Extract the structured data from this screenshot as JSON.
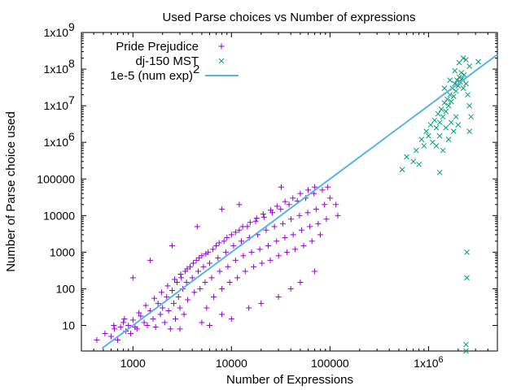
{
  "chart_data": {
    "type": "scatter",
    "title": "Used Parse choices vs Number of expressions",
    "xlabel": "Number of Expressions",
    "ylabel": "Number of Parse choice used",
    "x_scale": "log",
    "y_scale": "log",
    "xlim": [
      300,
      5000000
    ],
    "ylim": [
      2,
      1000000000
    ],
    "x_ticks": [
      {
        "value": 1000,
        "label": "1000"
      },
      {
        "value": 10000,
        "label": "10000"
      },
      {
        "value": 100000,
        "label": "100000"
      },
      {
        "value": 1000000,
        "label": "1x10",
        "sup": "6"
      }
    ],
    "y_ticks": [
      {
        "value": 10,
        "label": "10"
      },
      {
        "value": 100,
        "label": "100"
      },
      {
        "value": 1000,
        "label": "1000"
      },
      {
        "value": 10000,
        "label": "10000"
      },
      {
        "value": 100000,
        "label": "100000"
      },
      {
        "value": 1000000,
        "label": "1x10",
        "sup": "6"
      },
      {
        "value": 10000000,
        "label": "1x10",
        "sup": "7"
      },
      {
        "value": 100000000,
        "label": "1x10",
        "sup": "8"
      },
      {
        "value": 1000000000,
        "label": "1x10",
        "sup": "9"
      }
    ],
    "grid": false,
    "legend_position": "top-left",
    "series": [
      {
        "name": "Pride Prejudice",
        "marker": "plus",
        "color": "#9400d3",
        "points": [
          [
            430,
            4
          ],
          [
            520,
            6
          ],
          [
            600,
            5
          ],
          [
            650,
            8
          ],
          [
            700,
            4
          ],
          [
            750,
            9
          ],
          [
            800,
            12
          ],
          [
            850,
            7
          ],
          [
            900,
            10
          ],
          [
            950,
            6
          ],
          [
            1000,
            14
          ],
          [
            1050,
            9
          ],
          [
            1100,
            8
          ],
          [
            1200,
            18
          ],
          [
            1300,
            12
          ],
          [
            1400,
            10
          ],
          [
            1500,
            25
          ],
          [
            1600,
            15
          ],
          [
            1700,
            9
          ],
          [
            1800,
            40
          ],
          [
            1900,
            20
          ],
          [
            2000,
            30
          ],
          [
            2100,
            12
          ],
          [
            2200,
            60
          ],
          [
            2300,
            25
          ],
          [
            2400,
            8
          ],
          [
            2500,
            90
          ],
          [
            2600,
            40
          ],
          [
            2700,
            15
          ],
          [
            2800,
            150
          ],
          [
            2900,
            60
          ],
          [
            3000,
            30
          ],
          [
            3100,
            200
          ],
          [
            3200,
            100
          ],
          [
            3300,
            20
          ],
          [
            3400,
            300
          ],
          [
            3500,
            150
          ],
          [
            3600,
            50
          ],
          [
            3800,
            400
          ],
          [
            4000,
            200
          ],
          [
            4200,
            80
          ],
          [
            4400,
            600
          ],
          [
            4600,
            300
          ],
          [
            4800,
            100
          ],
          [
            5000,
            800
          ],
          [
            5200,
            400
          ],
          [
            5400,
            150
          ],
          [
            5600,
            30
          ],
          [
            5800,
            1000
          ],
          [
            6000,
            500
          ],
          [
            6300,
            200
          ],
          [
            6600,
            60
          ],
          [
            7000,
            1500
          ],
          [
            7300,
            700
          ],
          [
            7600,
            300
          ],
          [
            8000,
            100
          ],
          [
            8400,
            2000
          ],
          [
            8800,
            1000
          ],
          [
            9200,
            400
          ],
          [
            9600,
            150
          ],
          [
            10000,
            3000
          ],
          [
            10500,
            1500
          ],
          [
            11000,
            600
          ],
          [
            11500,
            200
          ],
          [
            12000,
            4000
          ],
          [
            12600,
            2000
          ],
          [
            13200,
            800
          ],
          [
            13800,
            300
          ],
          [
            14500,
            5000
          ],
          [
            15200,
            2500
          ],
          [
            16000,
            1000
          ],
          [
            16800,
            400
          ],
          [
            17600,
            7000
          ],
          [
            18500,
            3000
          ],
          [
            19400,
            1200
          ],
          [
            20400,
            500
          ],
          [
            21400,
            9000
          ],
          [
            22500,
            4000
          ],
          [
            23600,
            1500
          ],
          [
            24800,
            600
          ],
          [
            26000,
            12000
          ],
          [
            27300,
            5000
          ],
          [
            28700,
            2000
          ],
          [
            30100,
            800
          ],
          [
            31600,
            15000
          ],
          [
            33200,
            6000
          ],
          [
            34800,
            2500
          ],
          [
            36500,
            1000
          ],
          [
            38400,
            20000
          ],
          [
            40300,
            8000
          ],
          [
            42300,
            3000
          ],
          [
            44400,
            1200
          ],
          [
            46600,
            25000
          ],
          [
            49000,
            10000
          ],
          [
            51400,
            4000
          ],
          [
            54000,
            1500
          ],
          [
            56700,
            30000
          ],
          [
            59500,
            12000
          ],
          [
            62500,
            5000
          ],
          [
            65600,
            2000
          ],
          [
            68900,
            40000
          ],
          [
            72300,
            15000
          ],
          [
            75900,
            6000
          ],
          [
            79700,
            3000
          ],
          [
            83700,
            50000
          ],
          [
            88000,
            20000
          ],
          [
            92000,
            8000
          ],
          [
            95000,
            60000
          ],
          [
            100000,
            30000
          ],
          [
            115000,
            20000
          ],
          [
            120000,
            10000
          ],
          [
            640,
            10
          ],
          [
            820,
            15
          ],
          [
            1150,
            22
          ],
          [
            1350,
            35
          ],
          [
            1650,
            55
          ],
          [
            1950,
            80
          ],
          [
            2250,
            120
          ],
          [
            2650,
            180
          ],
          [
            3050,
            250
          ],
          [
            3550,
            350
          ],
          [
            4100,
            500
          ],
          [
            4700,
            700
          ],
          [
            5500,
            900
          ],
          [
            6500,
            1200
          ],
          [
            7500,
            1800
          ],
          [
            9000,
            2500
          ],
          [
            11000,
            3500
          ],
          [
            13000,
            5000
          ],
          [
            15500,
            6500
          ],
          [
            18000,
            8500
          ],
          [
            21000,
            11000
          ],
          [
            25000,
            14000
          ],
          [
            29000,
            18000
          ],
          [
            35000,
            24000
          ],
          [
            42000,
            30000
          ],
          [
            50000,
            40000
          ],
          [
            60000,
            50000
          ],
          [
            70000,
            60000
          ],
          [
            32000,
            60000
          ],
          [
            8000,
            15000
          ],
          [
            12000,
            20000
          ],
          [
            4500,
            5000
          ],
          [
            2500,
            1500
          ],
          [
            1500,
            600
          ],
          [
            1000,
            200
          ],
          [
            5000,
            12
          ],
          [
            8000,
            20
          ],
          [
            15000,
            30
          ],
          [
            30000,
            60
          ],
          [
            50000,
            150
          ],
          [
            70000,
            300
          ],
          [
            3000,
            8
          ],
          [
            6000,
            10
          ],
          [
            10000,
            15
          ],
          [
            20000,
            40
          ],
          [
            40000,
            100
          ]
        ]
      },
      {
        "name": "dj-150 MST",
        "marker": "cross",
        "color": "#009e73",
        "points": [
          [
            540000,
            180000
          ],
          [
            600000,
            400000
          ],
          [
            700000,
            300000
          ],
          [
            750000,
            600000
          ],
          [
            800000,
            250000
          ],
          [
            850000,
            1200000
          ],
          [
            900000,
            800000
          ],
          [
            950000,
            2000000
          ],
          [
            1000000,
            1500000
          ],
          [
            1050000,
            3000000
          ],
          [
            1100000,
            1000000
          ],
          [
            1150000,
            4000000
          ],
          [
            1200000,
            2500000
          ],
          [
            1250000,
            6000000
          ],
          [
            1300000,
            3500000
          ],
          [
            1350000,
            8000000
          ],
          [
            1400000,
            5000000
          ],
          [
            1450000,
            12000000
          ],
          [
            1500000,
            7000000
          ],
          [
            1550000,
            15000000
          ],
          [
            1600000,
            10000000
          ],
          [
            1650000,
            20000000
          ],
          [
            1700000,
            13000000
          ],
          [
            1750000,
            30000000
          ],
          [
            1800000,
            18000000
          ],
          [
            1850000,
            40000000
          ],
          [
            1900000,
            25000000
          ],
          [
            1950000,
            50000000
          ],
          [
            2000000,
            35000000
          ],
          [
            2050000,
            60000000
          ],
          [
            2100000,
            45000000
          ],
          [
            2150000,
            80000000
          ],
          [
            2200000,
            55000000
          ],
          [
            2250000,
            30000000
          ],
          [
            2300000,
            70000000
          ],
          [
            2400000,
            40000000
          ],
          [
            2500000,
            20000000
          ],
          [
            2600000,
            10000000
          ],
          [
            2700000,
            5000000
          ],
          [
            1200000,
            800000
          ],
          [
            1300000,
            1500000
          ],
          [
            1400000,
            600000
          ],
          [
            1500000,
            2500000
          ],
          [
            1600000,
            1200000
          ],
          [
            1700000,
            3500000
          ],
          [
            1800000,
            2000000
          ],
          [
            1900000,
            5000000
          ],
          [
            2000000,
            3000000
          ],
          [
            1450000,
            30000000
          ],
          [
            1650000,
            50000000
          ],
          [
            1850000,
            90000000
          ],
          [
            2050000,
            150000000
          ],
          [
            2250000,
            200000000
          ],
          [
            2400000,
            180000000
          ],
          [
            2600000,
            120000000
          ],
          [
            3200000,
            160000000
          ],
          [
            2600000,
            2000000
          ],
          [
            1300000,
            150000
          ],
          [
            2450000,
            1000
          ],
          [
            2450000,
            200
          ],
          [
            2400000,
            3
          ],
          [
            2400000,
            2
          ]
        ]
      },
      {
        "name": "1e-5 (num exp)",
        "name_sup": "2",
        "marker": "line",
        "color": "#56b4e9",
        "function": "1e-5 * x^2"
      }
    ]
  }
}
